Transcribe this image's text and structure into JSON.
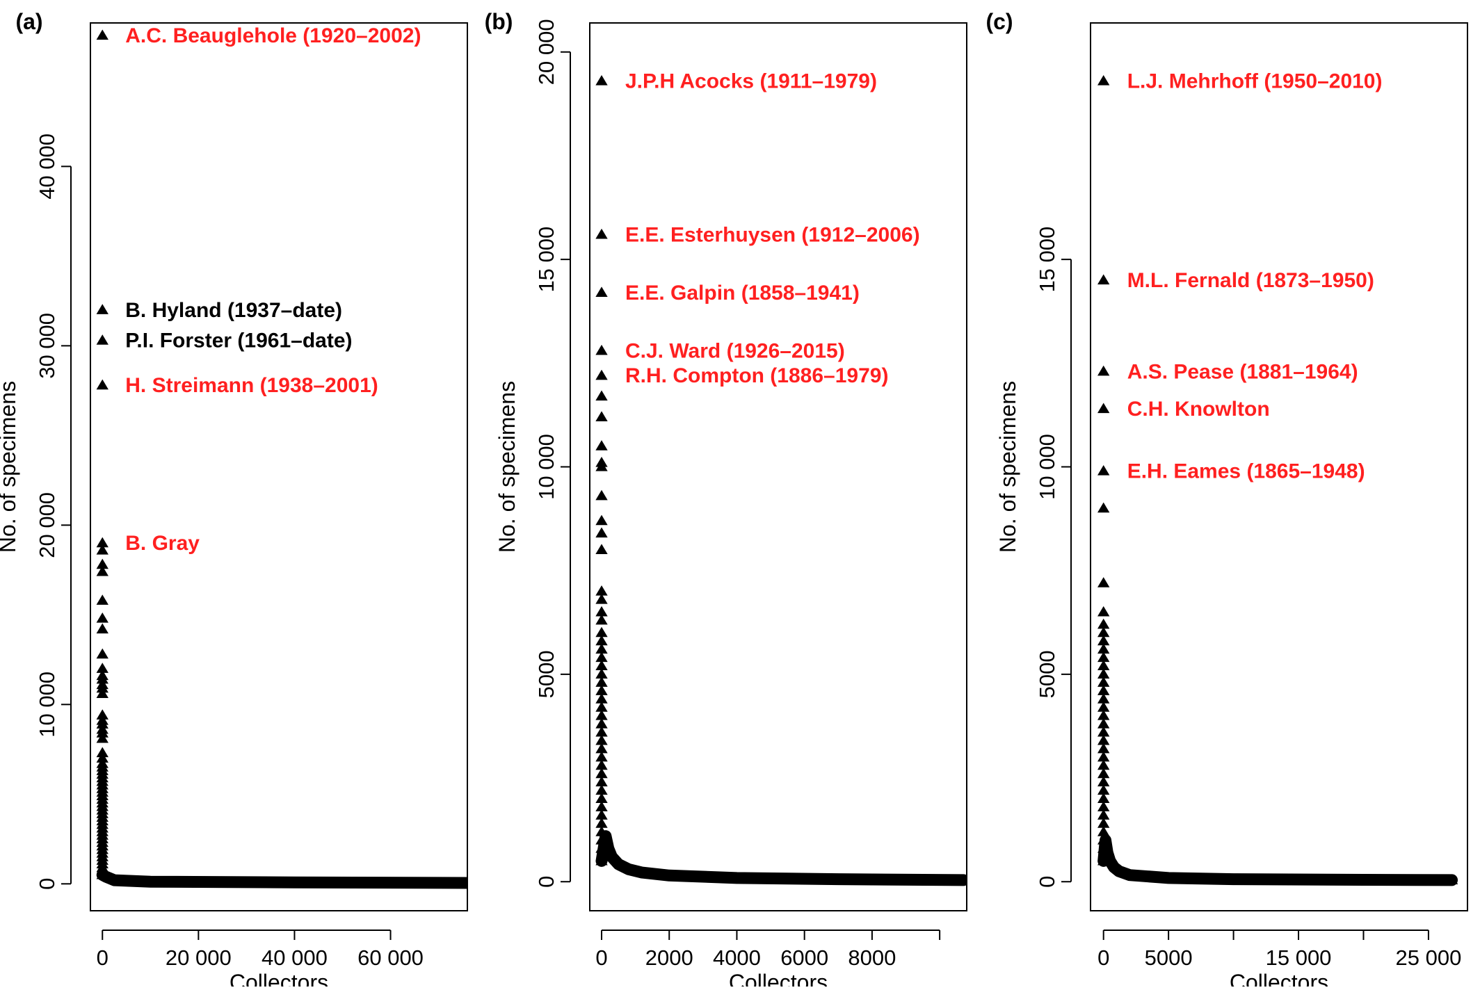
{
  "figure": {
    "panels": [
      {
        "letter": "(a)",
        "xlabel": "Collectors",
        "ylabel": "No. of specimens"
      },
      {
        "letter": "(b)",
        "xlabel": "Collectors",
        "ylabel": "No. of specimens"
      },
      {
        "letter": "(c)",
        "xlabel": "Collectors",
        "ylabel": "No. of specimens"
      }
    ]
  },
  "colors": {
    "axis": "#000000",
    "marker": "#000000",
    "deceased_label": "#ff2020",
    "living_label": "#000000"
  },
  "chart_data": [
    {
      "panel": "(a)",
      "type": "scatter",
      "marker": "filled-triangle",
      "xlabel": "Collectors",
      "ylabel": "No. of specimens",
      "xlim": [
        -2500,
        76000
      ],
      "ylim": [
        -1500,
        48000
      ],
      "xticks": [
        0,
        20000,
        40000,
        60000
      ],
      "xtick_labels": [
        "0",
        "20 000",
        "40 000",
        "60 000"
      ],
      "yticks": [
        0,
        10000,
        20000,
        30000,
        40000
      ],
      "ytick_labels": [
        "0",
        "10 000",
        "20 000",
        "30 000",
        "40 000"
      ],
      "n_collectors": 76000,
      "top_values": [
        47300,
        32000,
        30300,
        27800,
        19000,
        18600,
        17800,
        17400,
        15800,
        14800,
        14200,
        12800,
        12000,
        11600,
        11400,
        11100,
        10900,
        10600,
        9400,
        9100,
        8900,
        8600,
        8400,
        8100,
        7300,
        7000,
        6700,
        6500,
        6300,
        6100,
        5900,
        5700,
        5500,
        5300,
        5100,
        4900,
        4700,
        4500,
        4300,
        4100,
        3900,
        3700,
        3500,
        3300,
        3100,
        2900,
        2700,
        2500,
        2300,
        2100,
        1900,
        1700,
        1500,
        1300,
        1100,
        900,
        700,
        500
      ],
      "tail": {
        "x": [
          700,
          2500,
          10000,
          40000,
          76000
        ],
        "y": [
          400,
          200,
          120,
          80,
          50
        ]
      },
      "annotations": [
        {
          "text": "A.C. Beauglehole (1920–2002)",
          "value": 47300,
          "deceased": true
        },
        {
          "text": "B. Hyland (1937–date)",
          "value": 32000,
          "deceased": false
        },
        {
          "text": "P.I. Forster (1961–date)",
          "value": 30300,
          "deceased": false
        },
        {
          "text": "H. Streimann (1938–2001)",
          "value": 27800,
          "deceased": true
        },
        {
          "text": "B. Gray",
          "value": 19000,
          "deceased": true
        }
      ]
    },
    {
      "panel": "(b)",
      "type": "scatter",
      "marker": "filled-triangle",
      "xlabel": "Collectors",
      "ylabel": "No. of specimens",
      "xlim": [
        -350,
        10800
      ],
      "ylim": [
        -700,
        20700
      ],
      "xticks": [
        0,
        2000,
        4000,
        6000,
        8000,
        10000
      ],
      "xtick_labels": [
        "0",
        "2000",
        "4000",
        "6000",
        "8000",
        ""
      ],
      "yticks": [
        0,
        5000,
        10000,
        15000,
        20000
      ],
      "ytick_labels": [
        "0",
        "5000",
        "10 000",
        "15 000",
        "20 000"
      ],
      "n_collectors": 10700,
      "top_values": [
        19300,
        15600,
        14200,
        12800,
        12200,
        11700,
        11200,
        10500,
        10100,
        10000,
        9300,
        8700,
        8400,
        8000,
        7000,
        6800,
        6500,
        6300,
        6000,
        5800,
        5600,
        5400,
        5200,
        5000,
        4800,
        4600,
        4400,
        4200,
        4000,
        3800,
        3600,
        3400,
        3200,
        3000,
        2800,
        2600,
        2400,
        2200,
        2000,
        1800,
        1600,
        1400,
        1200,
        1000,
        800,
        600,
        500
      ],
      "tail": {
        "x": [
          120,
          200,
          300,
          500,
          800,
          1200,
          2000,
          4000,
          7000,
          10700
        ],
        "y": [
          1100,
          800,
          600,
          420,
          300,
          220,
          150,
          90,
          60,
          40
        ]
      },
      "annotations": [
        {
          "text": "J.P.H Acocks (1911–1979)",
          "value": 19300,
          "deceased": true
        },
        {
          "text": "E.E. Esterhuysen (1912–2006)",
          "value": 15600,
          "deceased": true
        },
        {
          "text": "E.E. Galpin (1858–1941)",
          "value": 14200,
          "deceased": true
        },
        {
          "text": "C.J. Ward (1926–2015)",
          "value": 12800,
          "deceased": true
        },
        {
          "text": "R.H. Compton (1886–1979)",
          "value": 12200,
          "deceased": true
        }
      ]
    },
    {
      "panel": "(c)",
      "type": "scatter",
      "marker": "filled-triangle",
      "xlabel": "Collectors",
      "ylabel": "No. of specimens",
      "xlim": [
        -1000,
        28000
      ],
      "ylim": [
        -700,
        20700
      ],
      "xticks": [
        0,
        5000,
        10000,
        15000,
        20000,
        25000
      ],
      "xtick_labels": [
        "0",
        "5000",
        "",
        "15 000",
        "",
        "25 000"
      ],
      "yticks": [
        0,
        5000,
        10000,
        15000
      ],
      "ytick_labels": [
        "0",
        "5000",
        "10 000",
        "15 000"
      ],
      "n_collectors": 26800,
      "top_values": [
        19300,
        14500,
        12300,
        11400,
        9900,
        9000,
        7200,
        6500,
        6200,
        6000,
        5800,
        5600,
        5400,
        5200,
        5000,
        4800,
        4600,
        4400,
        4200,
        4000,
        3800,
        3600,
        3400,
        3200,
        3000,
        2800,
        2600,
        2400,
        2200,
        2000,
        1800,
        1600,
        1400,
        1200,
        1000,
        800,
        600,
        500
      ],
      "tail": {
        "x": [
          150,
          300,
          500,
          800,
          1200,
          2000,
          5000,
          10000,
          20000,
          26800
        ],
        "y": [
          1000,
          700,
          500,
          350,
          250,
          160,
          90,
          60,
          45,
          40
        ]
      },
      "annotations": [
        {
          "text": "L.J. Mehrhoff (1950–2010)",
          "value": 19300,
          "deceased": true
        },
        {
          "text": "M.L. Fernald (1873–1950)",
          "value": 14500,
          "deceased": true
        },
        {
          "text": "A.S. Pease (1881–1964)",
          "value": 12300,
          "deceased": true
        },
        {
          "text": "C.H. Knowlton",
          "value": 11400,
          "deceased": true
        },
        {
          "text": "E.H. Eames (1865–1948)",
          "value": 9900,
          "deceased": true
        }
      ]
    }
  ]
}
